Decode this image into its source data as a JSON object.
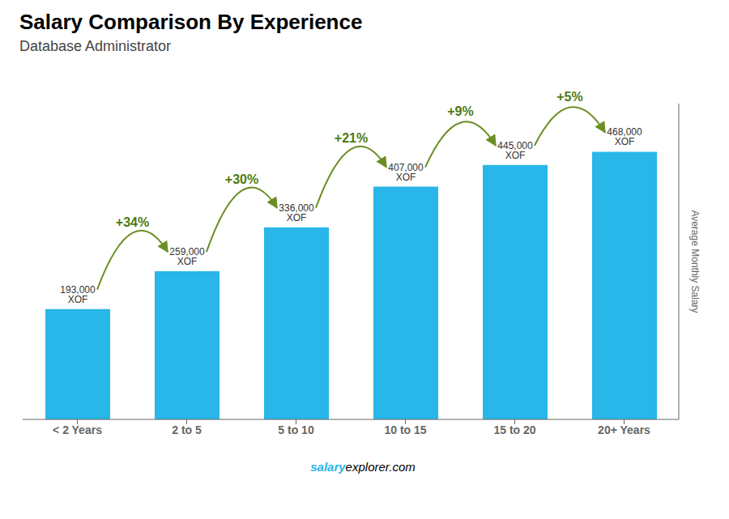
{
  "chart_data": {
    "type": "bar",
    "title": "Salary Comparison By Experience",
    "subtitle": "Database Administrator",
    "y_label": "Average Monthly Salary",
    "categories": [
      "< 2 Years",
      "2 to 5",
      "5 to 10",
      "10 to 15",
      "15 to 20",
      "20+ Years"
    ],
    "values": [
      193000,
      259000,
      336000,
      407000,
      445000,
      468000
    ],
    "value_labels": [
      "193,000 XOF",
      "259,000 XOF",
      "336,000 XOF",
      "407,000 XOF",
      "445,000 XOF",
      "468,000 XOF"
    ],
    "annotations": [
      "+34%",
      "+30%",
      "+21%",
      "+9%",
      "+5%"
    ],
    "watermark": [
      "salary",
      "explorer.com"
    ],
    "color": "#29b6e8",
    "ylim": [
      0,
      552240
    ],
    "data_labels": true,
    "tick_labels": "x",
    "grid": false
  }
}
